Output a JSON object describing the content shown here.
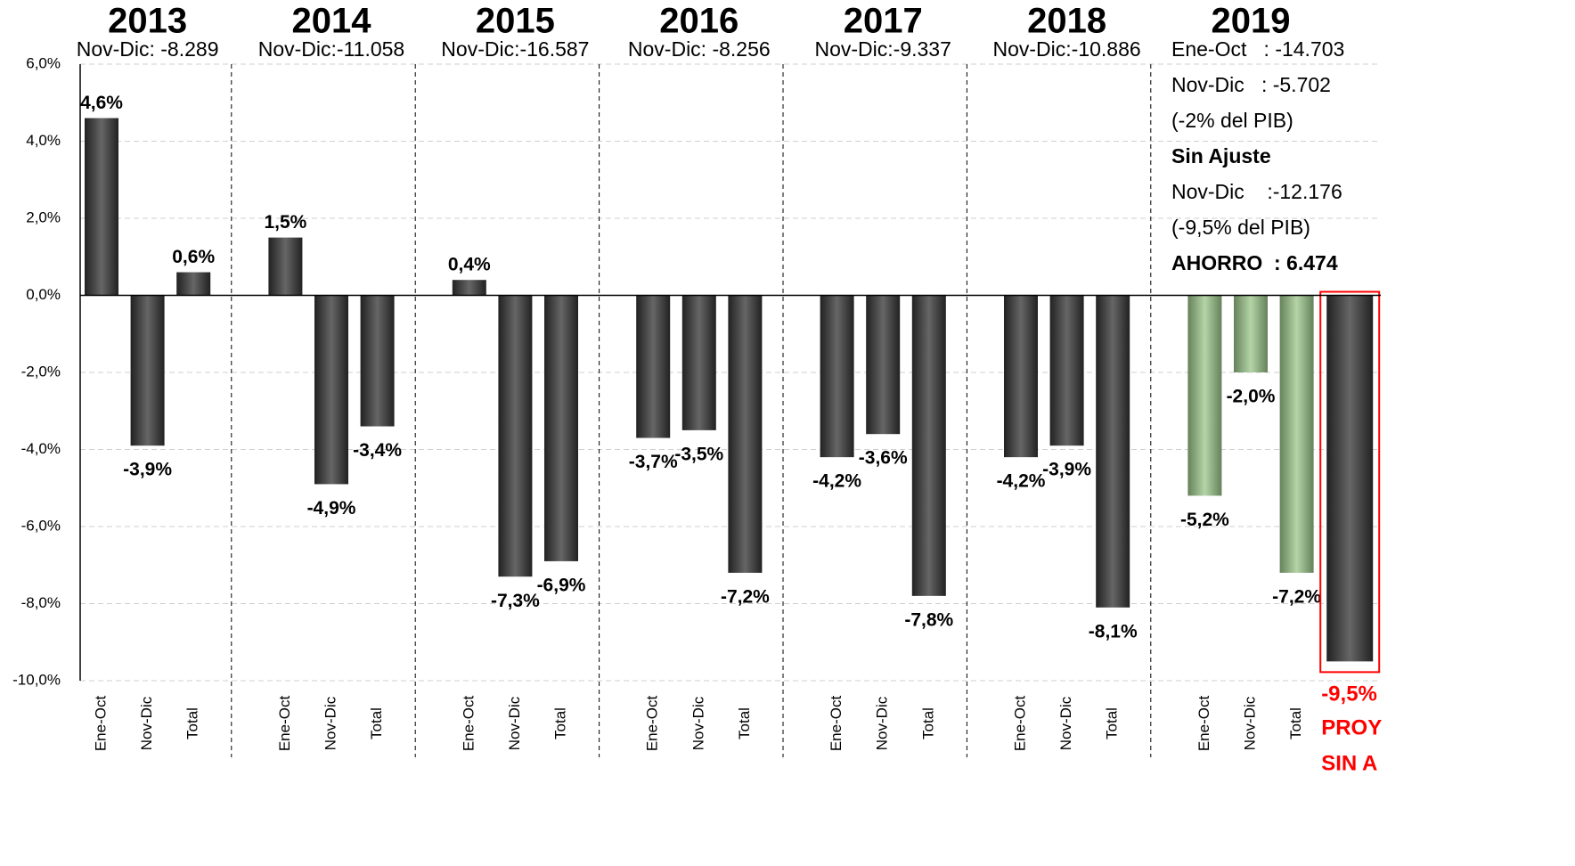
{
  "chart_data": {
    "type": "bar",
    "ylim": [
      -10,
      6
    ],
    "yticks": [
      {
        "value": -10,
        "label": "-10,0%"
      },
      {
        "value": -8,
        "label": "-8,0%"
      },
      {
        "value": -6,
        "label": "-6,0%"
      },
      {
        "value": -4,
        "label": "-4,0%"
      },
      {
        "value": -2,
        "label": "-2,0%"
      },
      {
        "value": 0,
        "label": "0,0%"
      },
      {
        "value": 2,
        "label": "2,0%"
      },
      {
        "value": 4,
        "label": "4,0%"
      },
      {
        "value": 6,
        "label": "6,0%"
      }
    ],
    "grid": true,
    "groups": [
      {
        "title": "2013",
        "notes": [
          {
            "text": "Nov-Dic: -8.289"
          }
        ],
        "categories": [
          "Ene-Oct",
          "Nov-Dic",
          "Total"
        ],
        "values": [
          4.6,
          -3.9,
          0.6
        ],
        "value_labels": [
          "4,6%",
          "-3,9%",
          "0,6%"
        ],
        "colors": [
          "#333333",
          "#333333",
          "#333333"
        ]
      },
      {
        "title": "2014",
        "notes": [
          {
            "text": "Nov-Dic:-11.058"
          }
        ],
        "categories": [
          "Ene-Oct",
          "Nov-Dic",
          "Total"
        ],
        "values": [
          1.5,
          -4.9,
          -3.4
        ],
        "value_labels": [
          "1,5%",
          "-4,9%",
          "-3,4%"
        ],
        "colors": [
          "#333333",
          "#333333",
          "#333333"
        ]
      },
      {
        "title": "2015",
        "notes": [
          {
            "text": "Nov-Dic:-16.587"
          }
        ],
        "categories": [
          "Ene-Oct",
          "Nov-Dic",
          "Total"
        ],
        "values": [
          0.4,
          -7.3,
          -6.9
        ],
        "value_labels": [
          "0,4%",
          "-7,3%",
          "-6,9%"
        ],
        "colors": [
          "#333333",
          "#333333",
          "#333333"
        ]
      },
      {
        "title": "2016",
        "notes": [
          {
            "text": "Nov-Dic: -8.256"
          }
        ],
        "categories": [
          "Ene-Oct",
          "Nov-Dic",
          "Total"
        ],
        "values": [
          -3.7,
          -3.5,
          -7.2
        ],
        "value_labels": [
          "-3,7%",
          "-3,5%",
          "-7,2%"
        ],
        "colors": [
          "#333333",
          "#333333",
          "#333333"
        ]
      },
      {
        "title": "2017",
        "notes": [
          {
            "text": "Nov-Dic:-9.337"
          }
        ],
        "categories": [
          "Ene-Oct",
          "Nov-Dic",
          "Total"
        ],
        "values": [
          -4.2,
          -3.6,
          -7.8
        ],
        "value_labels": [
          "-4,2%",
          "-3,6%",
          "-7,8%"
        ],
        "colors": [
          "#333333",
          "#333333",
          "#333333"
        ]
      },
      {
        "title": "2018",
        "notes": [
          {
            "text": "Nov-Dic:-10.886"
          }
        ],
        "categories": [
          "Ene-Oct",
          "Nov-Dic",
          "Total"
        ],
        "values": [
          -4.2,
          -3.9,
          -8.1
        ],
        "value_labels": [
          "-4,2%",
          "-3,9%",
          "-8,1%"
        ],
        "colors": [
          "#333333",
          "#333333",
          "#333333"
        ]
      },
      {
        "title": "2019",
        "notes": [
          {
            "text": "Ene-Oct   : -14.703"
          },
          {
            "text": "Nov-Dic   : -5.702"
          },
          {
            "text": "(-2% del PIB)"
          },
          {
            "text": "Sin Ajuste",
            "bold": true
          },
          {
            "text": "Nov-Dic    :-12.176"
          },
          {
            "text": "(-9,5% del PIB)"
          },
          {
            "text": "AHORRO  : 6.474",
            "bold": true
          }
        ],
        "categories": [
          "Ene-Oct",
          "Nov-Dic",
          "Total",
          null
        ],
        "values": [
          -5.2,
          -2.0,
          -7.2,
          -9.5
        ],
        "value_labels": [
          "-5,2%",
          "-2,0%",
          "-7,2%",
          "-9,5%"
        ],
        "colors": [
          "#9bc78a",
          "#9bc78a",
          "#9bc78a",
          "#333333"
        ],
        "label_colors": [
          "#000000",
          "#000000",
          "#000000",
          "#ff0000"
        ],
        "outline": [
          false,
          false,
          false,
          true
        ],
        "outline_color": "#ff0000",
        "annotations": [
          "PROY",
          "SIN A"
        ]
      }
    ]
  }
}
